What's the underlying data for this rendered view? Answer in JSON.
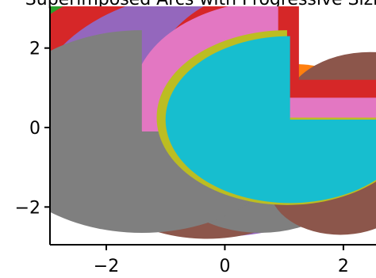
{
  "chart_data": {
    "type": "area",
    "title": "",
    "title_clipped_text": "Superimposed Arcs with Progressive Sizing",
    "xlabel": "",
    "ylabel": "",
    "xlim": [
      -2.95,
      2.55
    ],
    "ylim": [
      -2.95,
      3.05
    ],
    "xticks": [
      -2,
      0,
      2
    ],
    "yticks": [
      -2,
      0,
      2
    ],
    "xtick_labels": [
      "−2",
      "0",
      "2"
    ],
    "ytick_labels": [
      "−2",
      "0",
      "2"
    ],
    "grid": false,
    "legend": "none",
    "shapes": [
      {
        "name": "green-disc",
        "color": "#2ca02c",
        "cx": -1.7,
        "cy": 1.2,
        "r": 2.3,
        "theta_start_deg": 0,
        "theta_end_deg": 360
      },
      {
        "name": "red-arc",
        "color": "#d62728",
        "cx": -1.05,
        "cy": 1.0,
        "r": 2.65,
        "theta_start_deg": 90,
        "theta_end_deg": 360
      },
      {
        "name": "purple-arc",
        "color": "#9467bd",
        "cx": -0.15,
        "cy": 0.35,
        "r": 3.1,
        "theta_start_deg": 90,
        "theta_end_deg": 360
      },
      {
        "name": "brown-disc",
        "color": "#8c564b",
        "cx": -0.3,
        "cy": -0.7,
        "r": 2.1,
        "theta_start_deg": 0,
        "theta_end_deg": 360
      },
      {
        "name": "orange-disc",
        "color": "#ff7f0e",
        "cx": 1.1,
        "cy": -0.3,
        "r": 1.9,
        "theta_start_deg": 0,
        "theta_end_deg": 360
      },
      {
        "name": "dark-gray-disc",
        "color": "#7f7f7f",
        "cx": 0.6,
        "cy": -1.0,
        "r": 1.65,
        "theta_start_deg": 0,
        "theta_end_deg": 360
      },
      {
        "name": "brown-disc-right",
        "color": "#8c564b",
        "cx": 1.95,
        "cy": -1.5,
        "r": 1.2,
        "theta_start_deg": 0,
        "theta_end_deg": 360
      },
      {
        "name": "brown-disc-upper-right",
        "color": "#8c564b",
        "cx": 2.45,
        "cy": 0.45,
        "r": 1.45,
        "theta_start_deg": 0,
        "theta_end_deg": 360
      },
      {
        "name": "red-arc-right",
        "color": "#d62728",
        "cx": 1.25,
        "cy": 1.2,
        "r": 2.45,
        "theta_start_deg": 90,
        "theta_end_deg": 360
      },
      {
        "name": "pink-arc",
        "color": "#e377c2",
        "cx": 0.9,
        "cy": 0.75,
        "r": 2.45,
        "theta_start_deg": 90,
        "theta_end_deg": 360
      },
      {
        "name": "gray-arc",
        "color": "#7f7f7f",
        "cx": -1.4,
        "cy": -0.1,
        "r": 2.55,
        "theta_start_deg": 90,
        "theta_end_deg": 360
      },
      {
        "name": "olive-arc",
        "color": "#bcbd22",
        "cx": 1.05,
        "cy": 0.25,
        "r": 2.2,
        "theta_start_deg": 90,
        "theta_end_deg": 360
      },
      {
        "name": "cyan-arc",
        "color": "#17becf",
        "cx": 1.1,
        "cy": 0.2,
        "r": 2.1,
        "theta_start_deg": 90,
        "theta_end_deg": 360
      }
    ]
  }
}
